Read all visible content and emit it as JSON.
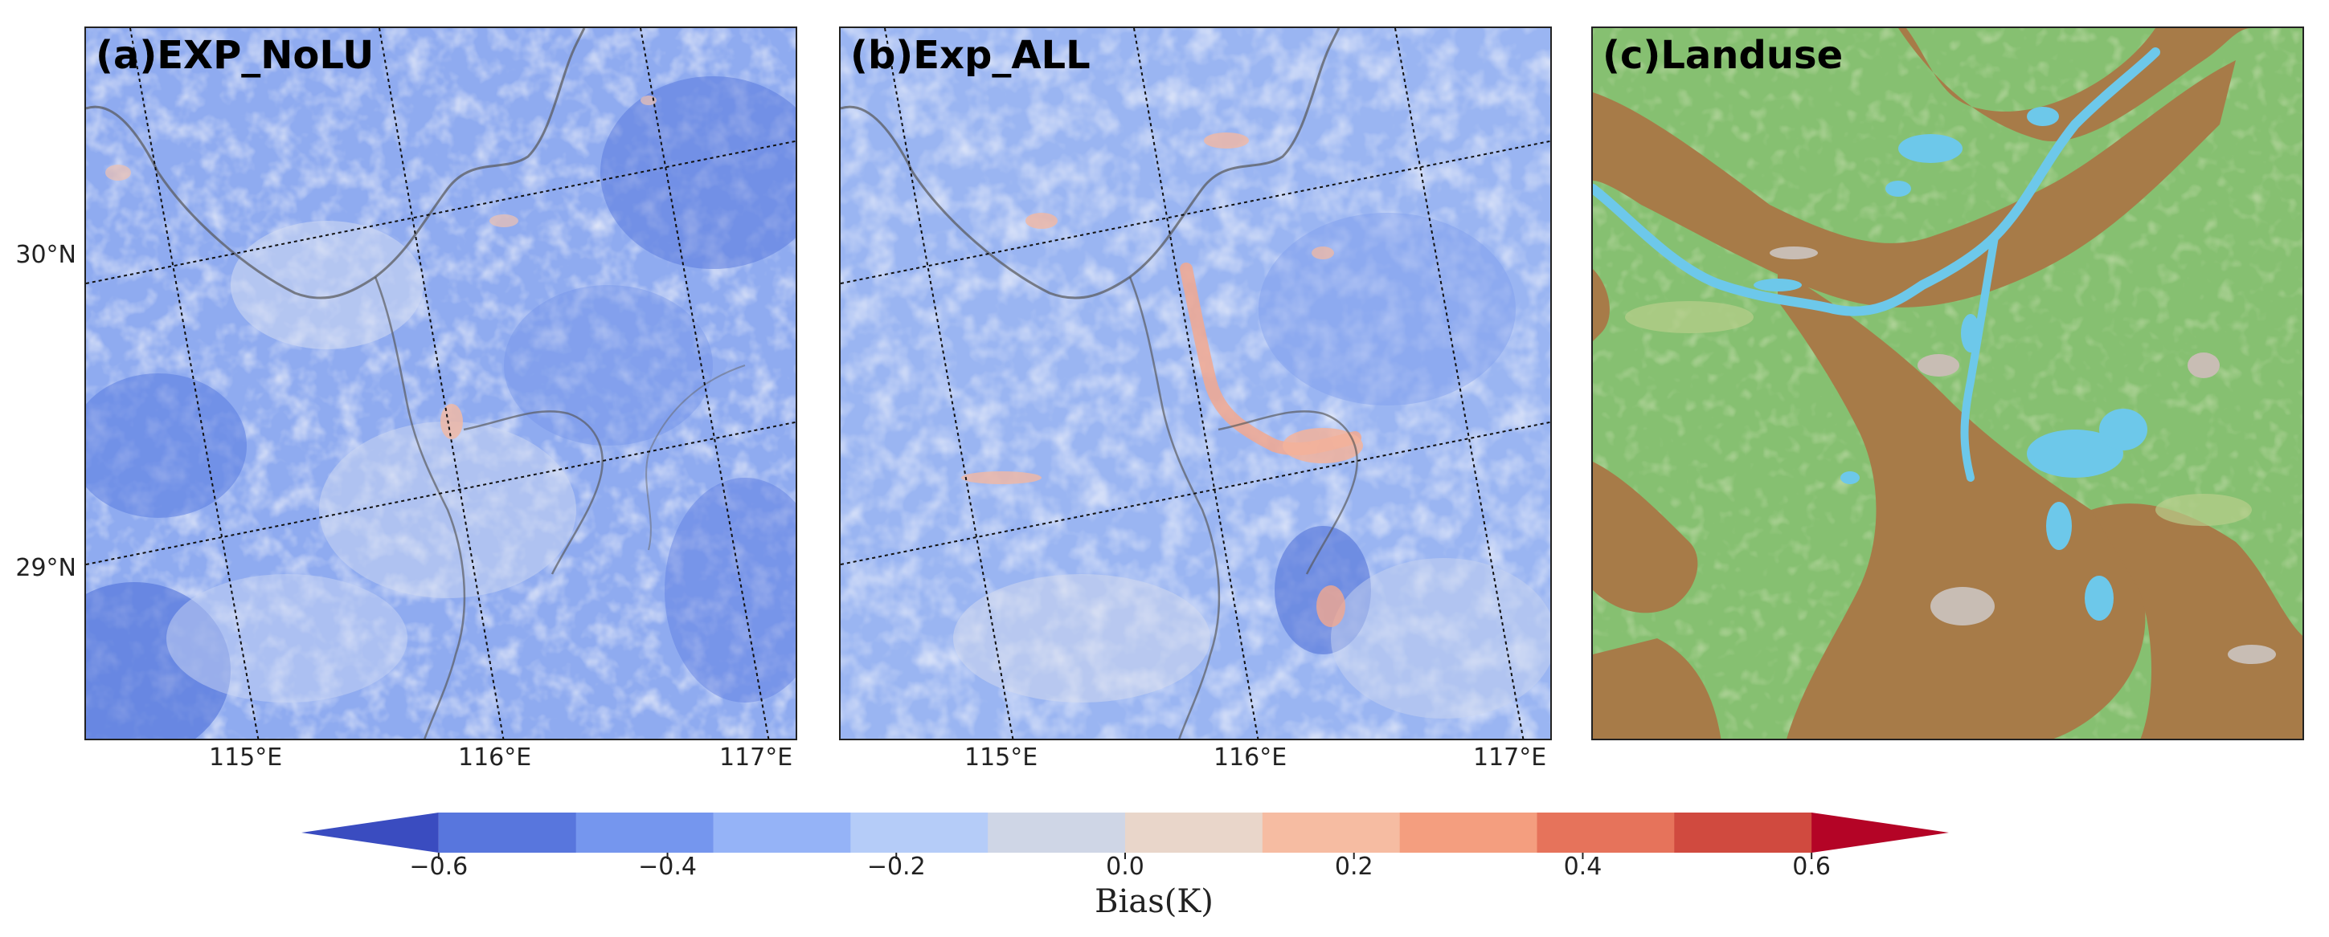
{
  "panels": [
    {
      "id": "a",
      "title": "(a)EXP_NoLU"
    },
    {
      "id": "b",
      "title": "(b)Exp_ALL"
    },
    {
      "id": "c",
      "title": "(c)Landuse"
    }
  ],
  "axes": {
    "lat_ticks": [
      "30°N",
      "29°N"
    ],
    "lon_ticks": [
      "115°E",
      "116°E",
      "117°E"
    ]
  },
  "colorbar": {
    "label": "Bias(K)",
    "ticks": [
      "−0.6",
      "−0.4",
      "−0.2",
      "0.0",
      "0.2",
      "0.4",
      "0.6"
    ],
    "range": [
      -0.6,
      0.6
    ],
    "extend": "both",
    "colors": [
      "#3a4cc0",
      "#5876dd",
      "#7596ee",
      "#95b3f7",
      "#b5ccf8",
      "#cfd6e6",
      "#e9d6ca",
      "#f6bca2",
      "#f49e7f",
      "#e6735b",
      "#d04a3f",
      "#b40426"
    ]
  },
  "landuse_colors": {
    "vegetation": "#86c071",
    "cropland": "#a77b48",
    "water": "#6dc8ea",
    "urban": "#c8bdb4",
    "grass": "#b8cf8c"
  }
}
